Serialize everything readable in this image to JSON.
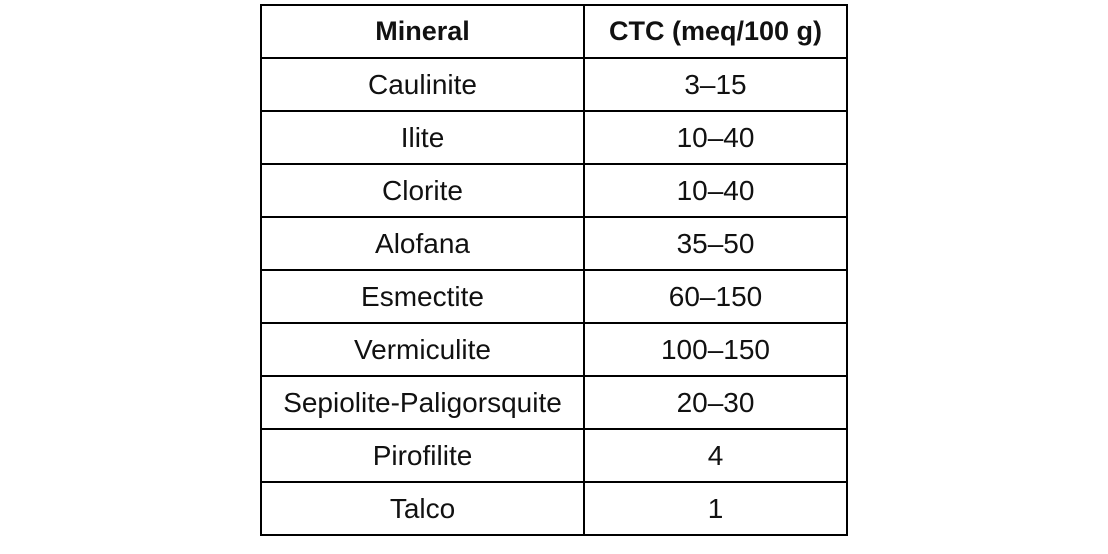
{
  "table": {
    "header": [
      "Mineral",
      "CTC (meq/100 g)"
    ],
    "rows": [
      [
        "Caulinite",
        "3–15"
      ],
      [
        "Ilite",
        "10–40"
      ],
      [
        "Clorite",
        "10–40"
      ],
      [
        "Alofana",
        "35–50"
      ],
      [
        "Esmectite",
        "60–150"
      ],
      [
        "Vermiculite",
        "100–150"
      ],
      [
        "Sepiolite-Paligorsquite",
        "20–30"
      ],
      [
        "Pirofilite",
        "4"
      ],
      [
        "Talco",
        "1"
      ]
    ]
  }
}
